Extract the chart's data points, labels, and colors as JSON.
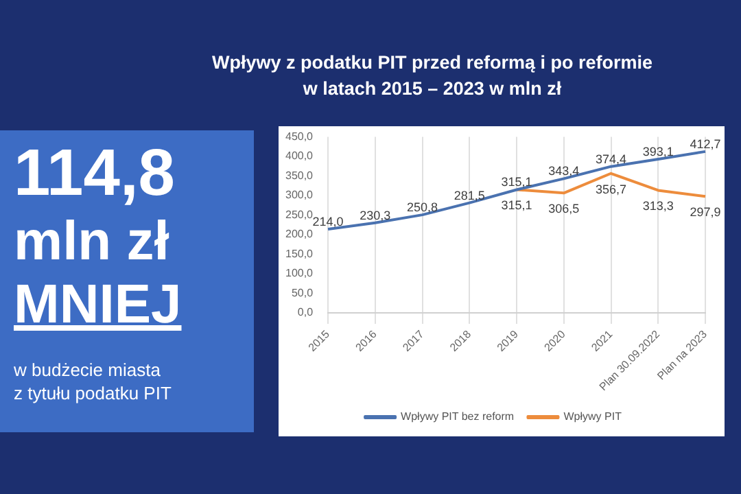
{
  "chart_data": {
    "type": "line",
    "title": "Wpływy z podatku PIT przed reformą i po reformie\nw latach 2015 – 2023 w mln zł",
    "annotations": [
      "114,8",
      "mln zł",
      "MNIEJ",
      "w budżecie miasta\nz tytułu podatku PIT"
    ],
    "categories": [
      "2015",
      "2016",
      "2017",
      "2018",
      "2019",
      "2020",
      "2021",
      "Plan 30.09.2022",
      "Plan na 2023"
    ],
    "series": [
      {
        "name": "Wpływy PIT bez reform",
        "color": "#4a72b0",
        "values": [
          214.0,
          230.3,
          250.8,
          281.5,
          315.1,
          343.4,
          374.4,
          393.1,
          412.7
        ],
        "value_labels": [
          "214,0",
          "230,3",
          "250,8",
          "281,5",
          "315,1",
          "343,4",
          "374,4",
          "393,1",
          "412,7"
        ]
      },
      {
        "name": "Wpływy PIT",
        "color": "#ed8c3c",
        "values": [
          null,
          null,
          null,
          null,
          315.1,
          306.5,
          356.7,
          313.3,
          297.9
        ],
        "value_labels": [
          null,
          null,
          null,
          null,
          "315,1",
          "306,5",
          "356,7",
          "313,3",
          "297,9"
        ]
      }
    ],
    "ylim": [
      0,
      450
    ],
    "yticks": [
      {
        "value": 0,
        "label": "0,0"
      },
      {
        "value": 50,
        "label": "50,0"
      },
      {
        "value": 100,
        "label": "100,0"
      },
      {
        "value": 150,
        "label": "150,0"
      },
      {
        "value": 200,
        "label": "200,0"
      },
      {
        "value": 250,
        "label": "250,0"
      },
      {
        "value": 300,
        "label": "300,0"
      },
      {
        "value": 350,
        "label": "350,0"
      },
      {
        "value": 400,
        "label": "400,0"
      },
      {
        "value": 450,
        "label": "450,0"
      }
    ],
    "grid": "x",
    "legend": "bottom",
    "marker": "none",
    "line_style": "solid"
  }
}
